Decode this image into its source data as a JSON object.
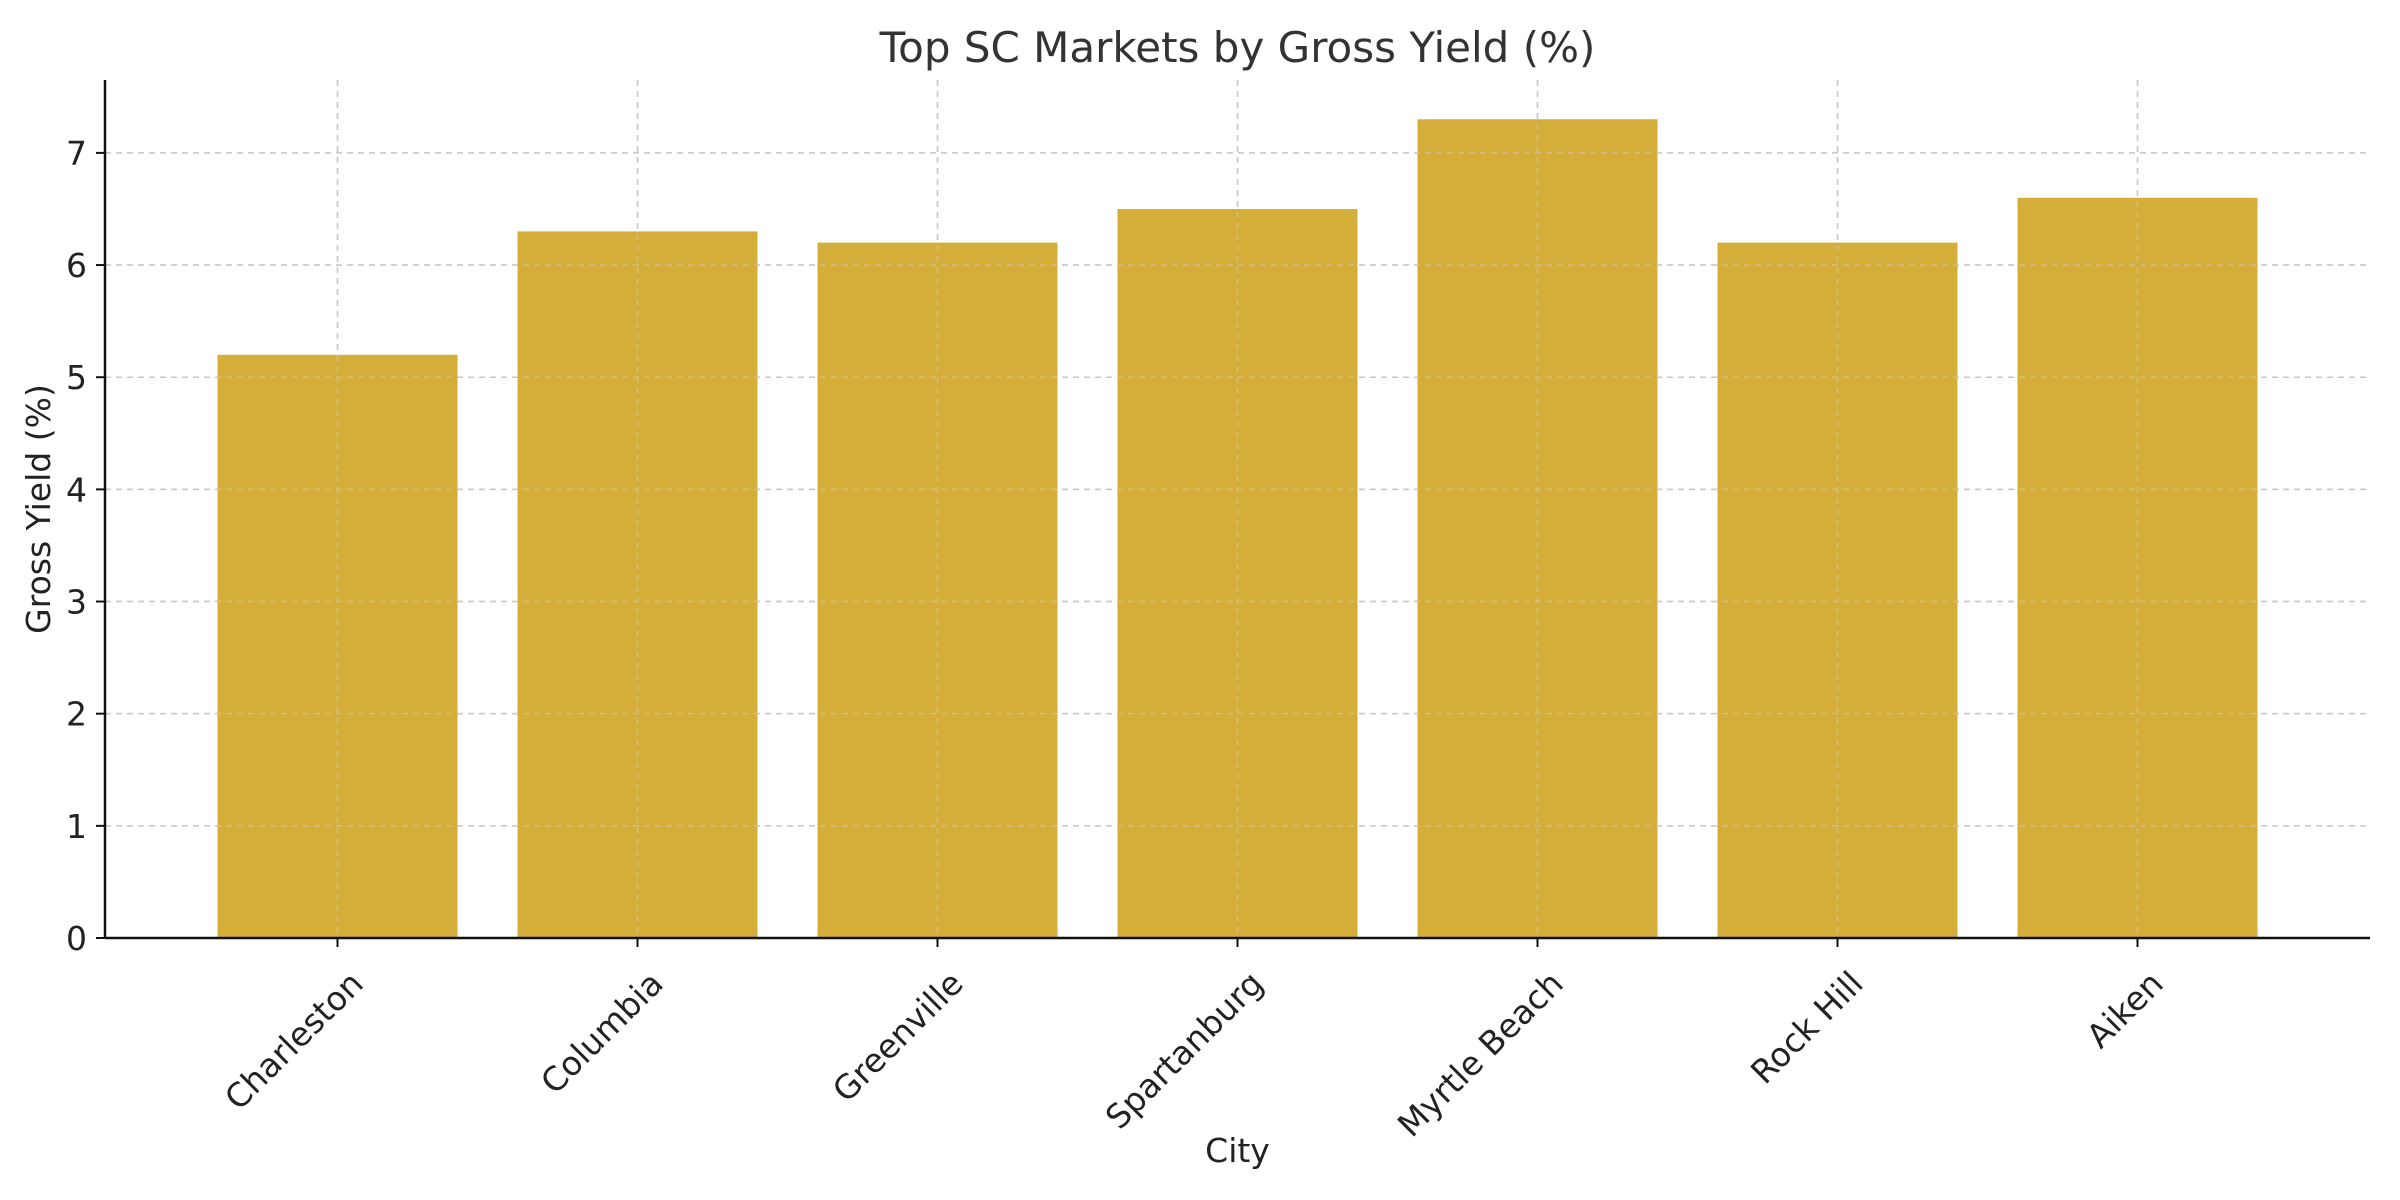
{
  "chart_data": {
    "type": "bar",
    "title": "Top SC Markets by Gross Yield (%)",
    "xlabel": "City",
    "ylabel": "Gross Yield (%)",
    "categories": [
      "Charleston",
      "Columbia",
      "Greenville",
      "Spartanburg",
      "Myrtle Beach",
      "Rock Hill",
      "Aiken"
    ],
    "values": [
      5.2,
      6.3,
      6.2,
      6.5,
      7.3,
      6.2,
      6.6
    ],
    "ylim": [
      0,
      7.65
    ],
    "yticks": [
      "0",
      "1",
      "2",
      "3",
      "4",
      "5",
      "6",
      "7"
    ],
    "grid": true,
    "bar_color": "#d4ae38"
  }
}
